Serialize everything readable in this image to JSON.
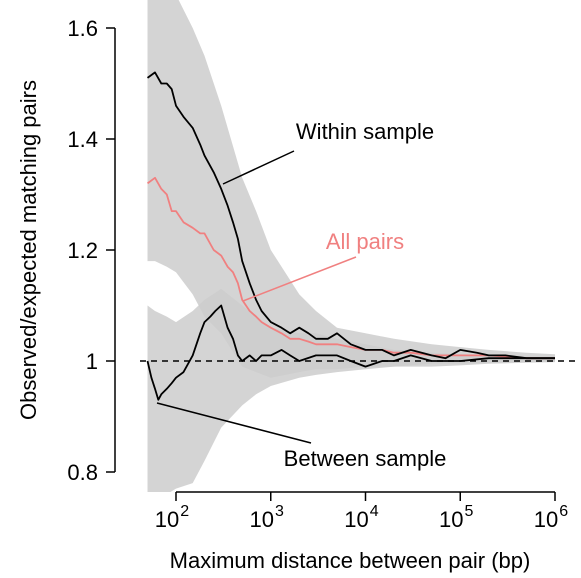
{
  "chart_data": {
    "type": "line",
    "xlabel": "Maximum distance between pair (bp)",
    "ylabel": "Observed/expected matching pairs",
    "x_scale": "log10",
    "xlim": [
      50,
      1500000
    ],
    "ylim": [
      0.77,
      1.62
    ],
    "x_ticks": [
      {
        "value": 100,
        "base": "10",
        "exp": "2"
      },
      {
        "value": 1000,
        "base": "10",
        "exp": "3"
      },
      {
        "value": 10000,
        "base": "10",
        "exp": "4"
      },
      {
        "value": 100000,
        "base": "10",
        "exp": "5"
      },
      {
        "value": 1000000,
        "base": "10",
        "exp": "6"
      }
    ],
    "y_ticks": [
      {
        "value": 0.8,
        "label": "0.8"
      },
      {
        "value": 1.0,
        "label": "1"
      },
      {
        "value": 1.2,
        "label": "1.2"
      },
      {
        "value": 1.4,
        "label": "1.4"
      },
      {
        "value": 1.6,
        "label": "1.6"
      }
    ],
    "reference_line": {
      "y": 1.0,
      "style": "dashed"
    },
    "confidence_bands": [
      {
        "of": "Within sample",
        "color": "#cccccc",
        "x": [
          50,
          60,
          80,
          100,
          150,
          200,
          300,
          500,
          700,
          1000,
          2000,
          3000,
          5000,
          10000,
          20000,
          50000,
          100000,
          200000,
          500000,
          1000000
        ],
        "lower": [
          1.18,
          1.18,
          1.17,
          1.16,
          1.12,
          1.08,
          1.05,
          0.99,
          0.98,
          0.97,
          0.98,
          0.985,
          0.985,
          0.99,
          0.99,
          0.995,
          0.995,
          0.997,
          0.998,
          0.999
        ],
        "upper": [
          1.7,
          1.7,
          1.68,
          1.66,
          1.6,
          1.55,
          1.46,
          1.33,
          1.27,
          1.2,
          1.12,
          1.09,
          1.06,
          1.05,
          1.04,
          1.03,
          1.025,
          1.02,
          1.015,
          1.012
        ]
      },
      {
        "of": "Between sample",
        "color": "#cccccc",
        "x": [
          50,
          60,
          80,
          100,
          150,
          200,
          300,
          500,
          700,
          1000,
          2000,
          3000,
          5000,
          10000,
          20000,
          50000,
          100000,
          200000,
          500000,
          1000000
        ],
        "lower": [
          0.76,
          0.76,
          0.76,
          0.77,
          0.78,
          0.82,
          0.88,
          0.92,
          0.94,
          0.955,
          0.97,
          0.975,
          0.98,
          0.985,
          0.99,
          0.99,
          0.992,
          0.995,
          0.997,
          0.998
        ],
        "upper": [
          1.1,
          1.09,
          1.08,
          1.07,
          1.09,
          1.11,
          1.13,
          1.1,
          1.08,
          1.06,
          1.05,
          1.05,
          1.04,
          1.03,
          1.02,
          1.015,
          1.012,
          1.01,
          1.008,
          1.006
        ]
      }
    ],
    "series": [
      {
        "name": "Within sample",
        "color": "#000000",
        "x": [
          50,
          60,
          70,
          80,
          90,
          100,
          120,
          150,
          180,
          200,
          250,
          300,
          350,
          400,
          450,
          500,
          600,
          700,
          800,
          1000,
          1300,
          1600,
          2000,
          2500,
          3000,
          4000,
          5000,
          7000,
          10000,
          15000,
          20000,
          30000,
          50000,
          70000,
          100000,
          150000,
          200000,
          300000,
          500000,
          1000000
        ],
        "y": [
          1.51,
          1.52,
          1.5,
          1.5,
          1.49,
          1.46,
          1.44,
          1.42,
          1.39,
          1.37,
          1.34,
          1.31,
          1.28,
          1.25,
          1.22,
          1.18,
          1.14,
          1.11,
          1.09,
          1.07,
          1.06,
          1.05,
          1.06,
          1.05,
          1.04,
          1.04,
          1.05,
          1.03,
          1.02,
          1.02,
          1.01,
          1.02,
          1.01,
          1.005,
          1.02,
          1.015,
          1.01,
          1.01,
          1.005,
          1.005
        ]
      },
      {
        "name": "All pairs",
        "color": "#f08080",
        "x": [
          50,
          60,
          70,
          80,
          90,
          100,
          120,
          150,
          180,
          200,
          250,
          300,
          350,
          400,
          450,
          500,
          600,
          700,
          800,
          1000,
          1300,
          1600,
          2000,
          2500,
          3000,
          4000,
          5000,
          7000,
          10000,
          15000,
          20000,
          30000,
          50000,
          100000,
          200000,
          500000,
          1000000
        ],
        "y": [
          1.32,
          1.33,
          1.31,
          1.3,
          1.27,
          1.27,
          1.25,
          1.24,
          1.23,
          1.23,
          1.2,
          1.19,
          1.17,
          1.16,
          1.14,
          1.11,
          1.09,
          1.08,
          1.07,
          1.06,
          1.05,
          1.04,
          1.04,
          1.035,
          1.03,
          1.03,
          1.03,
          1.025,
          1.02,
          1.02,
          1.015,
          1.015,
          1.01,
          1.01,
          1.01,
          1.005,
          1.005
        ]
      },
      {
        "name": "Between sample",
        "color": "#000000",
        "x": [
          50,
          55,
          60,
          65,
          70,
          80,
          90,
          100,
          120,
          150,
          180,
          200,
          230,
          260,
          300,
          350,
          400,
          450,
          500,
          600,
          700,
          800,
          1000,
          1300,
          1600,
          2000,
          3000,
          5000,
          7000,
          10000,
          15000,
          20000,
          30000,
          50000,
          100000,
          200000,
          500000,
          1000000
        ],
        "y": [
          1.0,
          0.97,
          0.95,
          0.93,
          0.94,
          0.95,
          0.96,
          0.97,
          0.98,
          1.01,
          1.05,
          1.07,
          1.08,
          1.09,
          1.1,
          1.06,
          1.04,
          1.01,
          1.0,
          1.01,
          1.0,
          1.01,
          1.01,
          1.02,
          1.01,
          1.0,
          1.01,
          1.01,
          1.0,
          0.99,
          1.0,
          1.0,
          1.01,
          1.0,
          1.0,
          1.005,
          1.005,
          1.005
        ]
      }
    ],
    "annotations": [
      {
        "text": "Within sample",
        "color": "#000000",
        "points_to": {
          "x": 320,
          "y": 1.32
        }
      },
      {
        "text": "All pairs",
        "color": "#f08080",
        "points_to": {
          "x": 540,
          "y": 1.11
        }
      },
      {
        "text": "Between sample",
        "color": "#000000",
        "points_to": {
          "x": 62,
          "y": 0.93
        }
      }
    ]
  }
}
